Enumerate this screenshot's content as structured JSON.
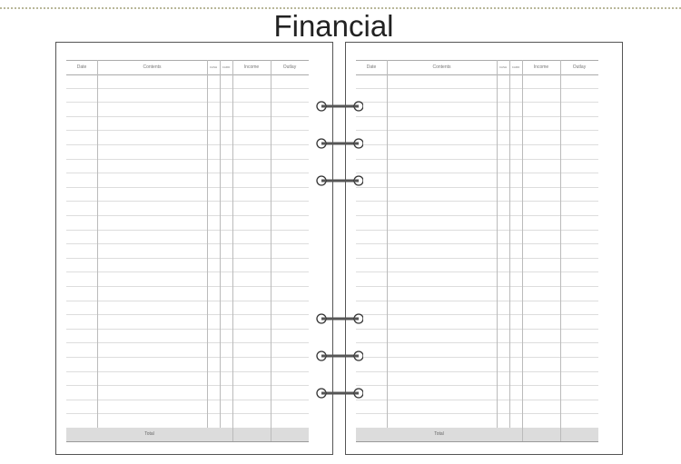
{
  "title": "Financial",
  "columns": [
    "Date",
    "Contents",
    "CASH",
    "CARD",
    "Income",
    "Outlay"
  ],
  "total_label": "Total",
  "pages": [
    "left",
    "right"
  ],
  "ring_count": 6
}
